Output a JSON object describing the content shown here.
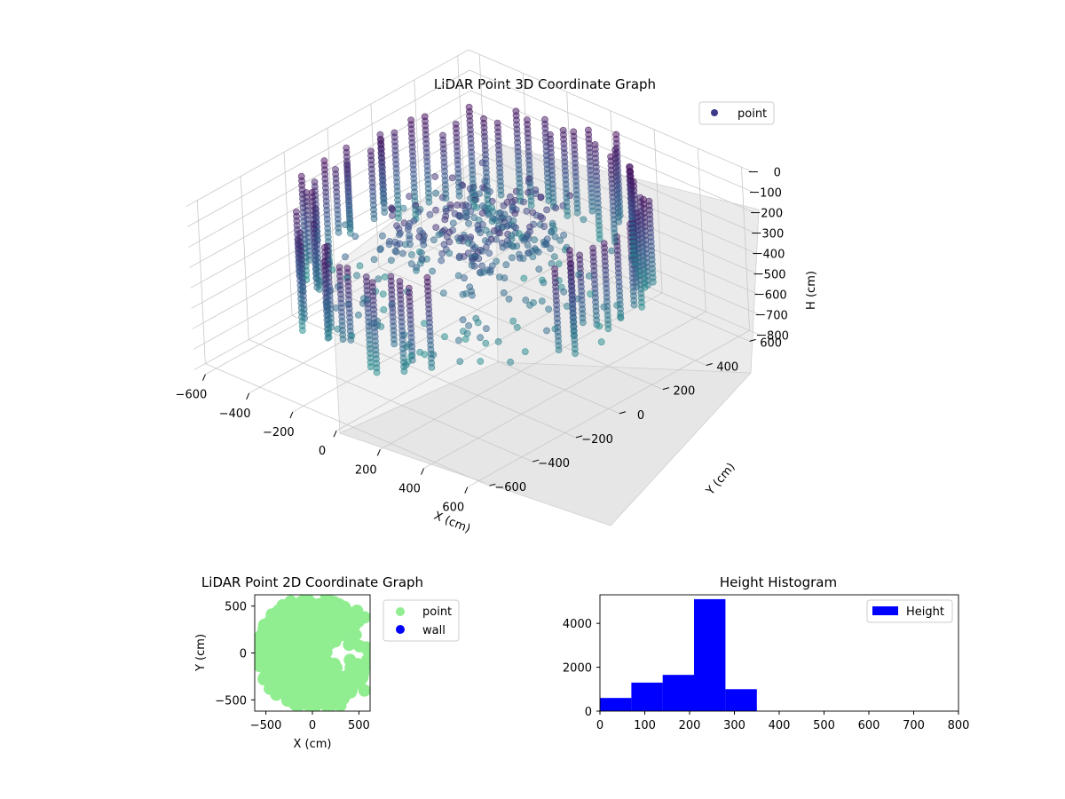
{
  "chart_data": [
    {
      "type": "scatter",
      "projection": "3d",
      "title": "LiDAR Point 3D Coordinate Graph",
      "xlabel": "X (cm)",
      "ylabel": "Y (cm)",
      "zlabel": "H (cm)",
      "xlim": [
        -650,
        650
      ],
      "ylim": [
        -650,
        650
      ],
      "zlim": [
        800,
        0
      ],
      "z_inverted": true,
      "xticks": [
        -600,
        -400,
        -200,
        0,
        200,
        400,
        600
      ],
      "yticks": [
        -600,
        -400,
        -200,
        0,
        200,
        400,
        600
      ],
      "zticks": [
        0,
        100,
        200,
        300,
        400,
        500,
        600,
        700,
        800
      ],
      "grid": true,
      "legend": {
        "placement": "top-right",
        "entries": [
          "point"
        ]
      },
      "colormap": [
        "#440154",
        "#3b528b",
        "#21918c"
      ],
      "series": [
        {
          "name": "point",
          "description_shape": "ring of vertical columns of points around origin, radius ~500-600, heights ~0-550 plus dense central cluster",
          "ring_radius_range": [
            480,
            620
          ],
          "height_range": [
            0,
            560
          ],
          "outliers": [
            [
              -150,
              450,
              780
            ],
            [
              20,
              500,
              800
            ]
          ]
        }
      ]
    },
    {
      "type": "scatter",
      "title": "LiDAR Point 2D Coordinate Graph",
      "xlabel": "X (cm)",
      "ylabel": "Y (cm)",
      "xlim": [
        -620,
        620
      ],
      "ylim": [
        -620,
        620
      ],
      "xticks": [
        -500,
        0,
        500
      ],
      "yticks": [
        -500,
        0,
        500
      ],
      "legend": {
        "placement": "outside-right",
        "entries": [
          "point",
          "wall"
        ]
      },
      "series": [
        {
          "name": "point",
          "color": "#90ee90"
        },
        {
          "name": "wall",
          "color": "#0000ff"
        }
      ]
    },
    {
      "type": "bar",
      "subtype": "histogram",
      "title": "Height Histogram",
      "xlabel": "",
      "ylabel": "",
      "xlim": [
        0,
        800
      ],
      "ylim": [
        0,
        5300
      ],
      "xticks": [
        0,
        100,
        200,
        300,
        400,
        500,
        600,
        700,
        800
      ],
      "yticks": [
        0,
        2000,
        4000
      ],
      "legend": {
        "placement": "top-right",
        "entries": [
          "Height"
        ]
      },
      "series": [
        {
          "name": "Height",
          "color": "#0000ff",
          "bin_edges": [
            0,
            70,
            140,
            210,
            280,
            350
          ],
          "values": [
            600,
            1300,
            1650,
            5100,
            1000
          ]
        }
      ]
    }
  ]
}
